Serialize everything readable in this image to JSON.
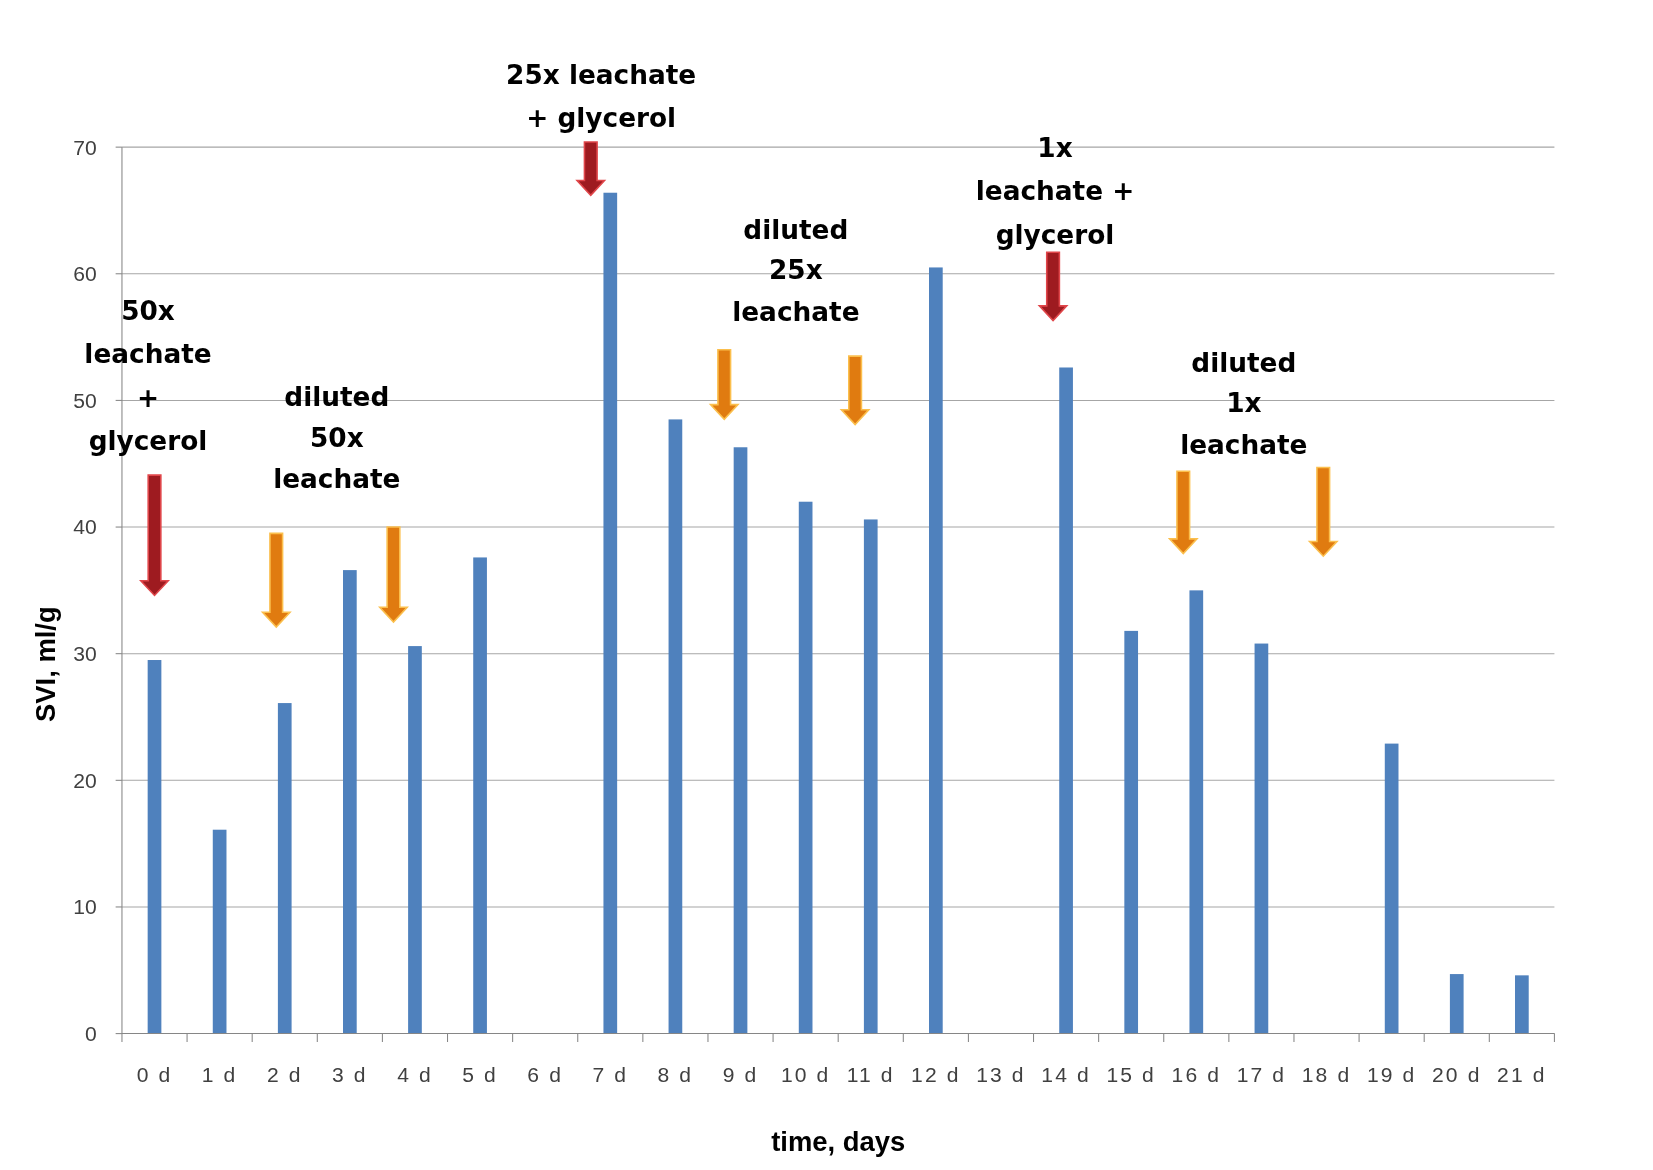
{
  "chart_data": {
    "type": "bar",
    "xlabel": "time, days",
    "ylabel": "SVI,  ml/g",
    "categories": [
      "0 d",
      "1 d",
      "2 d",
      "3 d",
      "4 d",
      "5 d",
      "6 d",
      "7 d",
      "8 d",
      "9 d",
      "10 d",
      "11 d",
      "12 d",
      "13 d",
      "14 d",
      "15 d",
      "16 d",
      "17 d",
      "18 d",
      "19 d",
      "20 d",
      "21 d"
    ],
    "values": [
      29.5,
      16.1,
      26.1,
      36.6,
      30.6,
      37.6,
      null,
      66.4,
      48.5,
      46.3,
      42.0,
      40.6,
      60.5,
      null,
      52.6,
      31.8,
      35.0,
      30.8,
      null,
      22.9,
      4.7,
      4.6
    ],
    "color": "#4f81bd",
    "ylim": [
      0,
      70
    ],
    "yticks": [
      0,
      10,
      20,
      30,
      40,
      50,
      60,
      70
    ],
    "grid": "y",
    "annotations": [
      "50x leachate + glycerol",
      "diluted 50x leachate",
      "25x leachate + glycerol",
      "diluted 25x leachate",
      "1x leachate + glycerol",
      "diluted 1x leachate"
    ]
  }
}
